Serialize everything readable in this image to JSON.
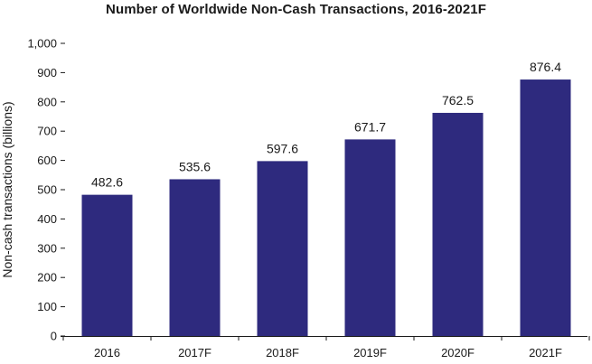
{
  "chart_data": {
    "type": "bar",
    "title": "Number of Worldwide Non-Cash Transactions, 2016-2021F",
    "xlabel": "",
    "ylabel": "Non-cash transactions (billions)",
    "categories": [
      "2016",
      "2017F",
      "2018F",
      "2019F",
      "2020F",
      "2021F"
    ],
    "values": [
      482.6,
      535.6,
      597.6,
      671.7,
      762.5,
      876.4
    ],
    "data_labels": [
      "482.6",
      "535.6",
      "597.6",
      "671.7",
      "762.5",
      "876.4"
    ],
    "ylim": [
      0,
      1000
    ],
    "yticks": [
      0,
      100,
      200,
      300,
      400,
      500,
      600,
      700,
      800,
      900,
      1000
    ],
    "ytick_labels": [
      "0",
      "100",
      "200",
      "300",
      "400",
      "500",
      "600",
      "700",
      "800",
      "900",
      "1,000"
    ],
    "grid": false,
    "legend": "none",
    "bar_color": "#2e2a7e"
  }
}
